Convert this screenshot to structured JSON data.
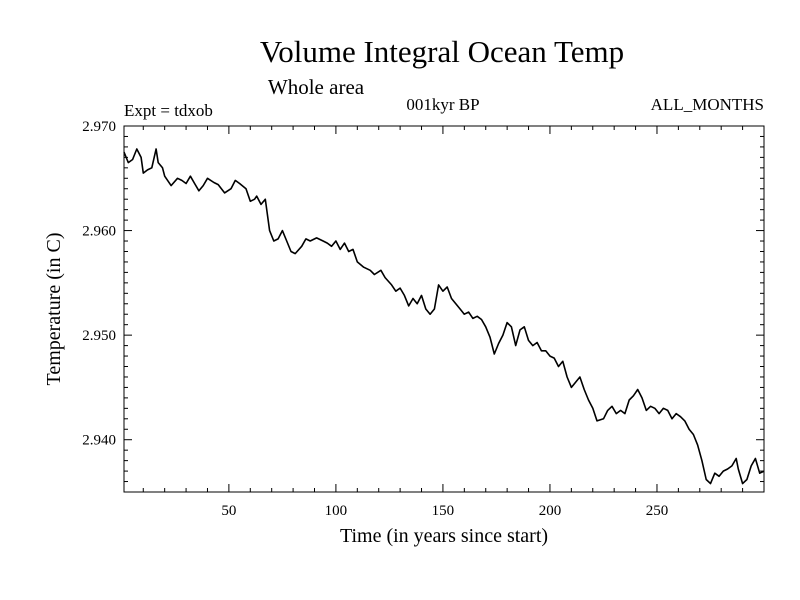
{
  "chart_data": {
    "type": "line",
    "title": "Volume Integral Ocean Temp",
    "subtitle": "Whole area",
    "annotations": {
      "experiment": "Expt = tdxob",
      "period": "001kyr BP",
      "months": "ALL_MONTHS"
    },
    "xlabel": "Time (in years since start)",
    "ylabel": "Temperature (in C)",
    "xlim": [
      1,
      300
    ],
    "ylim": [
      2.935,
      2.97
    ],
    "x_ticks": [
      50,
      100,
      150,
      200,
      250
    ],
    "y_ticks": [
      2.94,
      2.95,
      2.96,
      2.97
    ],
    "y_tick_labels": [
      "2.940",
      "2.950",
      "2.960",
      "2.970"
    ],
    "grid": false,
    "series": [
      {
        "points": [
          [
            1,
            2.9675
          ],
          [
            3,
            2.9665
          ],
          [
            5,
            2.9668
          ],
          [
            7,
            2.9678
          ],
          [
            9,
            2.967
          ],
          [
            10,
            2.9655
          ],
          [
            12,
            2.9658
          ],
          [
            14,
            2.966
          ],
          [
            16,
            2.9678
          ],
          [
            17,
            2.9665
          ],
          [
            19,
            2.966
          ],
          [
            20,
            2.9652
          ],
          [
            23,
            2.9643
          ],
          [
            26,
            2.965
          ],
          [
            28,
            2.9648
          ],
          [
            30,
            2.9645
          ],
          [
            32,
            2.9652
          ],
          [
            34,
            2.9645
          ],
          [
            36,
            2.9638
          ],
          [
            38,
            2.9643
          ],
          [
            40,
            2.965
          ],
          [
            43,
            2.9646
          ],
          [
            45,
            2.9644
          ],
          [
            48,
            2.9636
          ],
          [
            51,
            2.964
          ],
          [
            53,
            2.9648
          ],
          [
            55,
            2.9645
          ],
          [
            58,
            2.964
          ],
          [
            60,
            2.9628
          ],
          [
            62,
            2.963
          ],
          [
            63,
            2.9633
          ],
          [
            65,
            2.9625
          ],
          [
            67,
            2.963
          ],
          [
            69,
            2.96
          ],
          [
            71,
            2.959
          ],
          [
            73,
            2.9592
          ],
          [
            75,
            2.96
          ],
          [
            77,
            2.959
          ],
          [
            79,
            2.958
          ],
          [
            81,
            2.9578
          ],
          [
            84,
            2.9585
          ],
          [
            86,
            2.9592
          ],
          [
            88,
            2.959
          ],
          [
            91,
            2.9593
          ],
          [
            94,
            2.959
          ],
          [
            96,
            2.9588
          ],
          [
            98,
            2.9585
          ],
          [
            100,
            2.959
          ],
          [
            102,
            2.9582
          ],
          [
            104,
            2.9588
          ],
          [
            106,
            2.958
          ],
          [
            108,
            2.9582
          ],
          [
            110,
            2.957
          ],
          [
            113,
            2.9565
          ],
          [
            116,
            2.9562
          ],
          [
            118,
            2.9558
          ],
          [
            121,
            2.9562
          ],
          [
            123,
            2.9555
          ],
          [
            126,
            2.9548
          ],
          [
            128,
            2.9542
          ],
          [
            130,
            2.9545
          ],
          [
            132,
            2.9538
          ],
          [
            134,
            2.9528
          ],
          [
            136,
            2.9535
          ],
          [
            138,
            2.953
          ],
          [
            140,
            2.9538
          ],
          [
            142,
            2.9525
          ],
          [
            144,
            2.952
          ],
          [
            146,
            2.9525
          ],
          [
            148,
            2.9548
          ],
          [
            150,
            2.9542
          ],
          [
            152,
            2.9546
          ],
          [
            154,
            2.9535
          ],
          [
            156,
            2.953
          ],
          [
            158,
            2.9525
          ],
          [
            160,
            2.952
          ],
          [
            162,
            2.9522
          ],
          [
            164,
            2.9516
          ],
          [
            166,
            2.9518
          ],
          [
            168,
            2.9515
          ],
          [
            170,
            2.9508
          ],
          [
            172,
            2.9498
          ],
          [
            174,
            2.9482
          ],
          [
            176,
            2.9492
          ],
          [
            178,
            2.95
          ],
          [
            180,
            2.9512
          ],
          [
            182,
            2.9508
          ],
          [
            184,
            2.949
          ],
          [
            186,
            2.9505
          ],
          [
            188,
            2.9508
          ],
          [
            190,
            2.9495
          ],
          [
            192,
            2.949
          ],
          [
            194,
            2.9493
          ],
          [
            196,
            2.9485
          ],
          [
            198,
            2.9485
          ],
          [
            200,
            2.948
          ],
          [
            202,
            2.9478
          ],
          [
            204,
            2.947
          ],
          [
            206,
            2.9475
          ],
          [
            208,
            2.946
          ],
          [
            210,
            2.945
          ],
          [
            212,
            2.9455
          ],
          [
            214,
            2.946
          ],
          [
            216,
            2.9448
          ],
          [
            218,
            2.9438
          ],
          [
            220,
            2.943
          ],
          [
            222,
            2.9418
          ],
          [
            225,
            2.942
          ],
          [
            227,
            2.9428
          ],
          [
            229,
            2.9432
          ],
          [
            231,
            2.9425
          ],
          [
            233,
            2.9428
          ],
          [
            235,
            2.9425
          ],
          [
            237,
            2.9438
          ],
          [
            239,
            2.9442
          ],
          [
            241,
            2.9448
          ],
          [
            243,
            2.944
          ],
          [
            245,
            2.9428
          ],
          [
            247,
            2.9432
          ],
          [
            249,
            2.943
          ],
          [
            251,
            2.9425
          ],
          [
            253,
            2.943
          ],
          [
            255,
            2.9428
          ],
          [
            257,
            2.942
          ],
          [
            259,
            2.9425
          ],
          [
            261,
            2.9422
          ],
          [
            263,
            2.9418
          ],
          [
            265,
            2.941
          ],
          [
            267,
            2.9405
          ],
          [
            269,
            2.9395
          ],
          [
            271,
            2.938
          ],
          [
            273,
            2.9362
          ],
          [
            275,
            2.9358
          ],
          [
            277,
            2.9368
          ],
          [
            279,
            2.9365
          ],
          [
            281,
            2.937
          ],
          [
            283,
            2.9372
          ],
          [
            285,
            2.9375
          ],
          [
            287,
            2.9382
          ],
          [
            288,
            2.9372
          ],
          [
            290,
            2.9358
          ],
          [
            292,
            2.9362
          ],
          [
            294,
            2.9375
          ],
          [
            296,
            2.9382
          ],
          [
            298,
            2.9368
          ],
          [
            300,
            2.937
          ]
        ]
      }
    ]
  }
}
